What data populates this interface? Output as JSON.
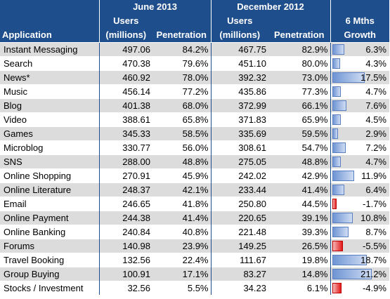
{
  "headers": {
    "group_june": "June 2013",
    "group_dec": "December 2012",
    "application": "Application",
    "users_top": "Users",
    "users_bottom": "(millions)",
    "penetration": "Penetration",
    "growth_top": "6 Mths",
    "growth_bottom": "Growth"
  },
  "rows": [
    {
      "app": "Instant Messaging",
      "jun_users": "497.06",
      "jun_pen": "84.2%",
      "dec_users": "467.75",
      "dec_pen": "82.9%",
      "growth": "6.3%",
      "growth_value": 6.3
    },
    {
      "app": "Search",
      "jun_users": "470.38",
      "jun_pen": "79.6%",
      "dec_users": "451.10",
      "dec_pen": "80.0%",
      "growth": "4.3%",
      "growth_value": 4.3
    },
    {
      "app": "News*",
      "jun_users": "460.92",
      "jun_pen": "78.0%",
      "dec_users": "392.32",
      "dec_pen": "73.0%",
      "growth": "17.5%",
      "growth_value": 17.5
    },
    {
      "app": "Music",
      "jun_users": "456.14",
      "jun_pen": "77.2%",
      "dec_users": "435.86",
      "dec_pen": "77.3%",
      "growth": "4.7%",
      "growth_value": 4.7
    },
    {
      "app": "Blog",
      "jun_users": "401.38",
      "jun_pen": "68.0%",
      "dec_users": "372.99",
      "dec_pen": "66.1%",
      "growth": "7.6%",
      "growth_value": 7.6
    },
    {
      "app": "Video",
      "jun_users": "388.61",
      "jun_pen": "65.8%",
      "dec_users": "371.83",
      "dec_pen": "65.9%",
      "growth": "4.5%",
      "growth_value": 4.5
    },
    {
      "app": "Games",
      "jun_users": "345.33",
      "jun_pen": "58.5%",
      "dec_users": "335.69",
      "dec_pen": "59.5%",
      "growth": "2.9%",
      "growth_value": 2.9
    },
    {
      "app": "Microblog",
      "jun_users": "330.77",
      "jun_pen": "56.0%",
      "dec_users": "308.61",
      "dec_pen": "54.7%",
      "growth": "7.2%",
      "growth_value": 7.2
    },
    {
      "app": "SNS",
      "jun_users": "288.00",
      "jun_pen": "48.8%",
      "dec_users": "275.05",
      "dec_pen": "48.8%",
      "growth": "4.7%",
      "growth_value": 4.7
    },
    {
      "app": "Online Shopping",
      "jun_users": "270.91",
      "jun_pen": "45.9%",
      "dec_users": "242.02",
      "dec_pen": "42.9%",
      "growth": "11.9%",
      "growth_value": 11.9
    },
    {
      "app": "Online Literature",
      "jun_users": "248.37",
      "jun_pen": "42.1%",
      "dec_users": "233.44",
      "dec_pen": "41.4%",
      "growth": "6.4%",
      "growth_value": 6.4
    },
    {
      "app": "Email",
      "jun_users": "246.65",
      "jun_pen": "41.8%",
      "dec_users": "250.80",
      "dec_pen": "44.5%",
      "growth": "-1.7%",
      "growth_value": -1.7
    },
    {
      "app": "Online Payment",
      "jun_users": "244.38",
      "jun_pen": "41.4%",
      "dec_users": "220.65",
      "dec_pen": "39.1%",
      "growth": "10.8%",
      "growth_value": 10.8
    },
    {
      "app": "Online Banking",
      "jun_users": "240.84",
      "jun_pen": "40.8%",
      "dec_users": "221.48",
      "dec_pen": "39.3%",
      "growth": "8.7%",
      "growth_value": 8.7
    },
    {
      "app": "Forums",
      "jun_users": "140.98",
      "jun_pen": "23.9%",
      "dec_users": "149.25",
      "dec_pen": "26.5%",
      "growth": "-5.5%",
      "growth_value": -5.5
    },
    {
      "app": "Travel Booking",
      "jun_users": "132.56",
      "jun_pen": "22.4%",
      "dec_users": "111.67",
      "dec_pen": "19.8%",
      "growth": "18.7%",
      "growth_value": 18.7
    },
    {
      "app": "Group Buying",
      "jun_users": "100.91",
      "jun_pen": "17.1%",
      "dec_users": "83.27",
      "dec_pen": "14.8%",
      "growth": "21.2%",
      "growth_value": 21.2
    },
    {
      "app": "Stocks / Investment",
      "jun_users": "32.56",
      "jun_pen": "5.5%",
      "dec_users": "34.23",
      "dec_pen": "6.1%",
      "growth": "-4.9%",
      "growth_value": -4.9
    }
  ],
  "colors": {
    "header_bg": "#1f4e8c",
    "band_grey": "#dcdcdc",
    "positive_bar": "#6f95d4",
    "negative_bar": "#e31b1b"
  }
}
